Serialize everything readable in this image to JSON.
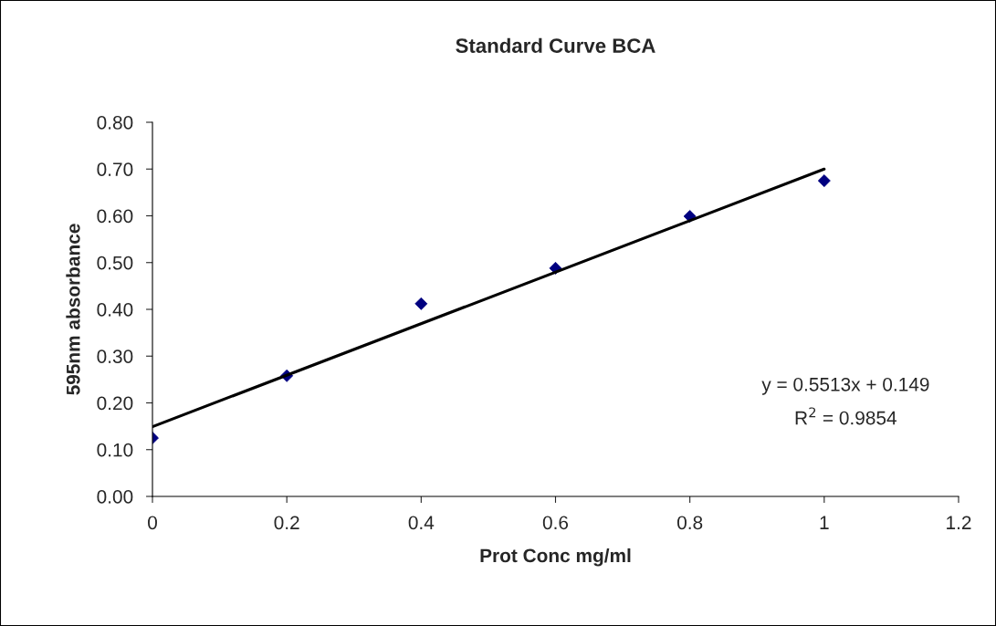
{
  "chart_data": {
    "type": "scatter",
    "title": "Standard Curve BCA",
    "xlabel": "Prot Conc mg/ml",
    "ylabel": "595nm absorbance",
    "x": [
      0,
      0.2,
      0.4,
      0.6,
      0.8,
      1
    ],
    "series": [
      {
        "color": "#000080",
        "values": [
          0.125,
          0.258,
          0.412,
          0.488,
          0.599,
          0.675
        ],
        "marker": "diamond"
      },
      {
        "type": "line",
        "color": "#000000",
        "x": [
          0,
          1
        ],
        "values": [
          0.149,
          0.7
        ],
        "marker": "none"
      }
    ],
    "annotations": [
      "y = 0.5513x + 0.149",
      "R$^{2}$ = 0.9854"
    ],
    "xlim": [
      0,
      1.2
    ],
    "xticks": [
      0,
      0.2,
      0.4,
      0.6,
      0.8,
      1,
      1.2
    ],
    "ylim": [
      0,
      0.8
    ],
    "yticks": [
      {
        "value": 0,
        "label": "0.00"
      },
      {
        "value": 0.1,
        "label": "0.10"
      },
      {
        "value": 0.2,
        "label": "0.20"
      },
      {
        "value": 0.3,
        "label": "0.30"
      },
      {
        "value": 0.4,
        "label": "0.40"
      },
      {
        "value": 0.5,
        "label": "0.50"
      },
      {
        "value": 0.6,
        "label": "0.60"
      },
      {
        "value": 0.7,
        "label": "0.70"
      },
      {
        "value": 0.8,
        "label": "0.80"
      }
    ],
    "grid": false,
    "legend": false
  }
}
